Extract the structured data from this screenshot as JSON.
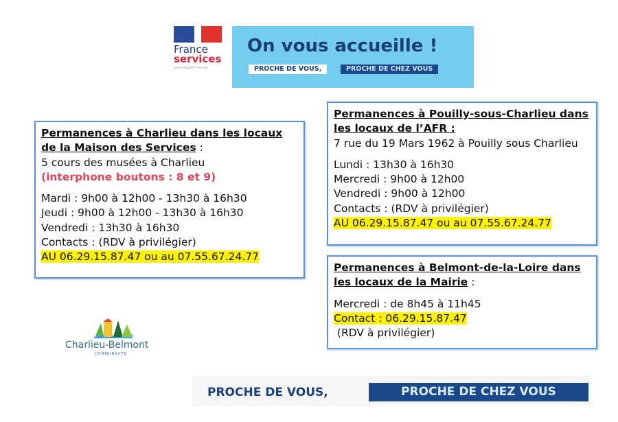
{
  "logo_france_services": {
    "line1": "France",
    "line2": "services",
    "motto": "Liberté Égalité Fraternité"
  },
  "banner": {
    "title": "On vous accueille !",
    "tag1": "PROCHE DE VOUS,",
    "tag2": "PROCHE DE CHEZ VOUS"
  },
  "charlieu": {
    "heading": "Permanences à Charlieu dans les locaux de la Maison des Services",
    "heading_suffix": " :",
    "address": "5 cours des musées à Charlieu",
    "note": "(interphone boutons : 8 et 9)",
    "hours": [
      "Mardi : 9h00 à 12h00 - 13h30 à 16h30",
      "Jeudi : 9h00 à 12h00 - 13h30 à 16h30",
      "Vendredi : 13h30 à 16h30"
    ],
    "contacts": "Contacts : (RDV à privilégier)",
    "phones": "AU 06.29.15.87.47 ou au 07.55.67.24.77"
  },
  "pouilly": {
    "heading": "Permanences à Pouilly-sous-Charlieu dans les locaux de l’AFR :",
    "address": "7 rue du 19 Mars 1962 à Pouilly sous Charlieu",
    "hours": [
      "Lundi : 13h30 à 16h30",
      "Mercredi : 9h00 à 12h00",
      "Vendredi : 9h00 à 12h00"
    ],
    "contacts": "Contacts : (RDV à privilégier)",
    "phones": "AU 06.29.15.87.47 ou au 07.55.67.24.77"
  },
  "belmont": {
    "heading": "Permanences à Belmont-de-la-Loire dans les locaux de la Mairie",
    "heading_suffix": " :",
    "hours": [
      "Mercredi : de 8h45 à 11h45"
    ],
    "phones": "Contact : 06.29.15.87.47",
    "contacts": " (RDV à privilégier)"
  },
  "logo_cb": {
    "name": "Charlieu-Belmont",
    "sub": "COMMUNAUTÉ"
  },
  "footer": {
    "tag1": "PROCHE DE VOUS,",
    "tag2": "PROCHE DE CHEZ VOUS"
  }
}
